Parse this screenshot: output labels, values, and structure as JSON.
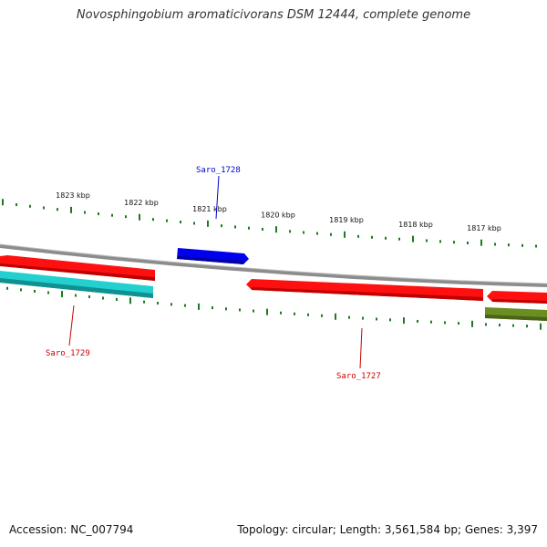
{
  "title": "Novosphingobium aromaticivorans DSM 12444, complete genome",
  "footer": {
    "accession": "Accession: NC_007794",
    "topology": "Topology: circular; Length: 3,561,584 bp; Genes: 3,397"
  },
  "colors": {
    "backbone": "#8a8a8a",
    "tick": "#1e7a1e",
    "forward_gene": "#0000ee",
    "reverse_gene": "#ff0000",
    "cyan_gene": "#1ec8c8",
    "olive_gene": "#6b8e23",
    "label_blue": "#0000cc",
    "label_red": "#cc0000"
  },
  "ticks": {
    "major_labels": [
      "1823 kbp",
      "1822 kbp",
      "1821 kbp",
      "1820 kbp",
      "1819 kbp",
      "1818 kbp",
      "1817 kbp"
    ]
  },
  "genes": [
    {
      "name": "Saro_1728",
      "strand": "forward",
      "color": "blue"
    },
    {
      "name": "Saro_1729",
      "strand": "reverse",
      "color": "red"
    },
    {
      "name": "Saro_1727",
      "strand": "reverse",
      "color": "red"
    }
  ]
}
